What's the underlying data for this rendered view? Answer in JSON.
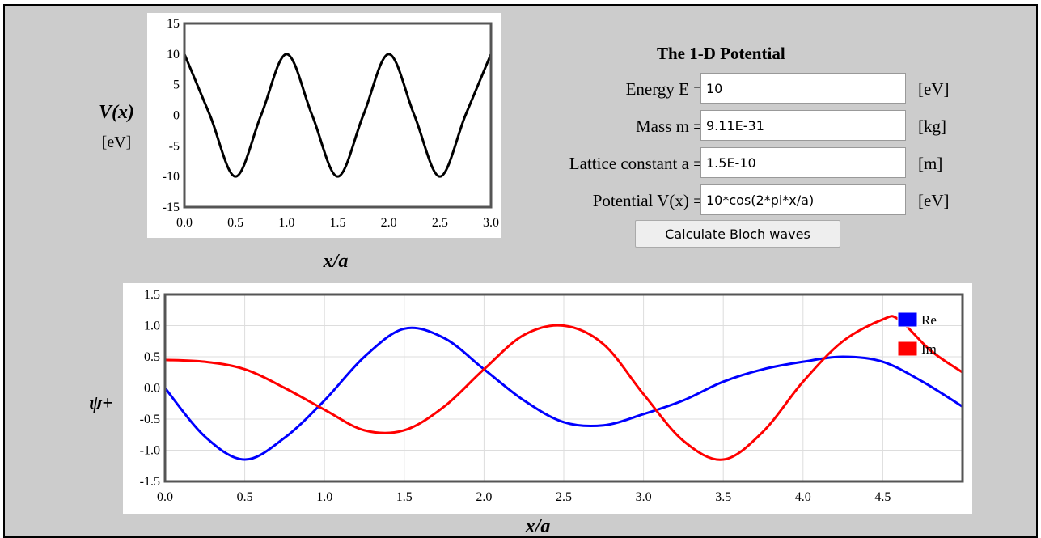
{
  "potential_plot": {
    "ylabel_var": "V(x)",
    "ylabel_unit": "[eV]",
    "xlabel": "x/a",
    "y_ticks": [
      "15",
      "10",
      "5",
      "0",
      "-5",
      "-10",
      "-15"
    ],
    "x_ticks": [
      "0.0",
      "0.5",
      "1.0",
      "1.5",
      "2.0",
      "2.5",
      "3.0"
    ],
    "line_color": "#000000"
  },
  "form": {
    "title": "The 1-D Potential",
    "energy_label": "Energy E =",
    "energy_value": "10",
    "energy_unit": "[eV]",
    "mass_label": "Mass m =",
    "mass_value": "9.11E-31",
    "mass_unit": "[kg]",
    "lattice_label": "Lattice constant a =",
    "lattice_value": "1.5E-10",
    "lattice_unit": "[m]",
    "potential_label": "Potential V(x) =",
    "potential_value": "10*cos(2*pi*x/a)",
    "potential_unit": "[eV]",
    "calculate_button": "Calculate Bloch waves"
  },
  "wave_plot": {
    "ylabel": "ψ+",
    "xlabel": "x/a",
    "y_ticks": [
      "1.5",
      "1.0",
      "0.5",
      "0.0",
      "-0.5",
      "-1.0",
      "-1.5"
    ],
    "x_ticks": [
      "0.0",
      "0.5",
      "1.0",
      "1.5",
      "2.0",
      "2.5",
      "3.0",
      "3.5",
      "4.0",
      "4.5"
    ],
    "legend": [
      {
        "label": "Re",
        "color": "#0000ff"
      },
      {
        "label": "Im",
        "color": "#ff0000"
      }
    ]
  },
  "chart_data": [
    {
      "type": "line",
      "xlabel": "x/a",
      "ylabel": "V(x) [eV]",
      "xlim": [
        0,
        3
      ],
      "ylim": [
        -15,
        15
      ],
      "grid": false,
      "series": [
        {
          "color": "#000000",
          "x": [
            0,
            0.25,
            0.5,
            0.75,
            1.0,
            1.25,
            1.5,
            1.75,
            2.0,
            2.25,
            2.5,
            2.75,
            3.0
          ],
          "values": [
            10,
            0,
            -10,
            0,
            10,
            0,
            -10,
            0,
            10,
            0,
            -10,
            0,
            10
          ]
        }
      ]
    },
    {
      "type": "line",
      "xlabel": "x/a",
      "ylabel": "ψ+",
      "xlim": [
        0,
        5
      ],
      "ylim": [
        -1.5,
        1.5
      ],
      "grid": true,
      "legend": "top-right",
      "series": [
        {
          "name": "Re",
          "color": "#0000ff",
          "x": [
            0,
            0.25,
            0.5,
            0.75,
            1.0,
            1.25,
            1.5,
            1.75,
            2.0,
            2.25,
            2.5,
            2.75,
            3.0,
            3.25,
            3.5,
            3.75,
            4.0,
            4.25,
            4.5,
            4.75,
            5.0
          ],
          "values": [
            0.0,
            -0.78,
            -1.15,
            -0.8,
            -0.2,
            0.5,
            0.95,
            0.8,
            0.3,
            -0.2,
            -0.55,
            -0.6,
            -0.42,
            -0.2,
            0.1,
            0.3,
            0.42,
            0.5,
            0.42,
            0.1,
            -0.3
          ]
        },
        {
          "name": "Im",
          "color": "#ff0000",
          "x": [
            0,
            0.25,
            0.5,
            0.75,
            1.0,
            1.25,
            1.5,
            1.75,
            2.0,
            2.25,
            2.5,
            2.75,
            3.0,
            3.25,
            3.5,
            3.75,
            4.0,
            4.25,
            4.5,
            4.6,
            4.8,
            5.0
          ],
          "values": [
            0.45,
            0.42,
            0.3,
            0.0,
            -0.35,
            -0.68,
            -0.68,
            -0.3,
            0.3,
            0.85,
            1.0,
            0.7,
            -0.1,
            -0.85,
            -1.15,
            -0.7,
            0.1,
            0.75,
            1.1,
            1.1,
            0.6,
            0.25
          ]
        }
      ]
    }
  ]
}
